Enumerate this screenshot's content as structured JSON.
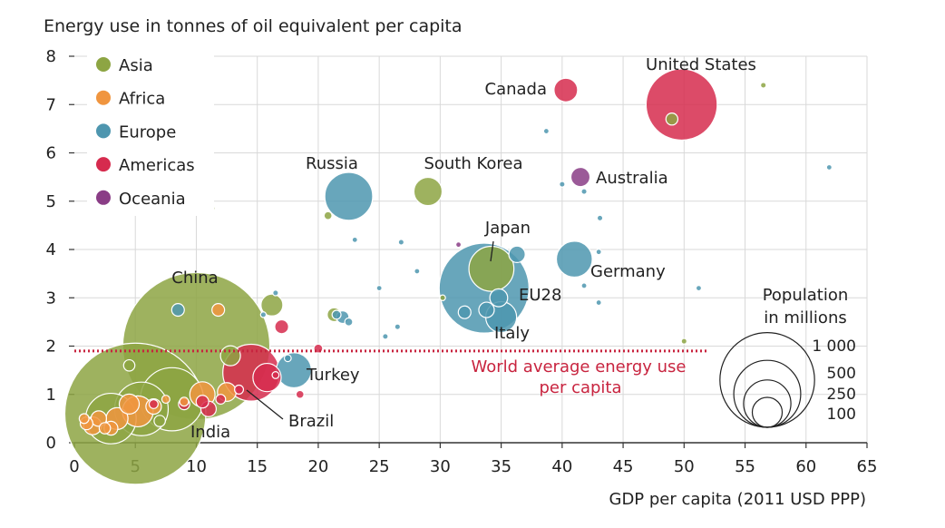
{
  "chart_data": {
    "type": "scatter",
    "title": "Energy use in tonnes of oil equivalent per capita",
    "xlabel": "GDP per capita (2011 USD PPP)",
    "ylabel": "Energy use in tonnes of oil equivalent per capita",
    "xlim": [
      0,
      65
    ],
    "ylim": [
      0,
      8
    ],
    "xticks": [
      0,
      5,
      10,
      15,
      20,
      25,
      30,
      35,
      40,
      45,
      50,
      55,
      60,
      65
    ],
    "yticks": [
      0,
      1,
      2,
      3,
      4,
      5,
      6,
      7,
      8
    ],
    "grid": true,
    "legend": {
      "position": "top-left",
      "entries": [
        {
          "name": "Asia",
          "color": "#8da543"
        },
        {
          "name": "Africa",
          "color": "#f0953f"
        },
        {
          "name": "Europe",
          "color": "#4e96af"
        },
        {
          "name": "Americas",
          "color": "#d62b4e"
        },
        {
          "name": "Oceania",
          "color": "#8a3d86"
        }
      ]
    },
    "reference_line": {
      "y": 1.9,
      "label_line1": "World average energy use",
      "label_line2": "per capita",
      "color": "#c8243f"
    },
    "size_legend": {
      "title_line1": "Population",
      "title_line2": "in millions",
      "entries": [
        {
          "label": "1 000",
          "population": 1000
        },
        {
          "label": "500",
          "population": 500
        },
        {
          "label": "250",
          "population": 250
        },
        {
          "label": "100",
          "population": 100
        }
      ]
    },
    "points": [
      {
        "label": "China",
        "region": "Asia",
        "x": 10.0,
        "y": 2.0,
        "population": 1360
      },
      {
        "label": "India",
        "region": "Asia",
        "x": 5.0,
        "y": 0.6,
        "population": 1250
      },
      {
        "label": "EU28",
        "region": "Europe",
        "x": 33.6,
        "y": 3.2,
        "population": 507
      },
      {
        "label": "United States",
        "region": "Americas",
        "x": 49.8,
        "y": 7.0,
        "population": 318
      },
      {
        "label": "Russia",
        "region": "Europe",
        "x": 22.5,
        "y": 5.1,
        "population": 144
      },
      {
        "label": "Japan",
        "region": "Asia",
        "x": 34.2,
        "y": 3.6,
        "population": 127
      },
      {
        "label": "Brazil",
        "region": "Americas",
        "x": 14.5,
        "y": 1.45,
        "population": 202
      },
      {
        "label": "Turkey",
        "region": "Europe",
        "x": 18.0,
        "y": 1.5,
        "population": 77
      },
      {
        "label": "Germany",
        "region": "Europe",
        "x": 41.0,
        "y": 3.8,
        "population": 81
      },
      {
        "label": "Canada",
        "region": "Americas",
        "x": 40.3,
        "y": 7.3,
        "population": 35
      },
      {
        "label": "Australia",
        "region": "Oceania",
        "x": 41.5,
        "y": 5.5,
        "population": 23
      },
      {
        "label": "South Korea",
        "region": "Asia",
        "x": 29.0,
        "y": 5.2,
        "population": 50
      },
      {
        "label": "Italy",
        "region": "Europe",
        "x": 35.0,
        "y": 2.6,
        "population": 60
      },
      {
        "label": "",
        "region": "Asia",
        "x": 8.0,
        "y": 0.9,
        "population": 250
      },
      {
        "label": "",
        "region": "Asia",
        "x": 5.5,
        "y": 0.7,
        "population": 180
      },
      {
        "label": "",
        "region": "Asia",
        "x": 3.0,
        "y": 0.5,
        "population": 160
      },
      {
        "label": "",
        "region": "Asia",
        "x": 16.2,
        "y": 2.85,
        "population": 30
      },
      {
        "label": "",
        "region": "Asia",
        "x": 21.3,
        "y": 2.65,
        "population": 12
      },
      {
        "label": "",
        "region": "Asia",
        "x": 20.8,
        "y": 4.7,
        "population": 4
      },
      {
        "label": "",
        "region": "Asia",
        "x": 11.3,
        "y": 4.85,
        "population": 1
      },
      {
        "label": "",
        "region": "Asia",
        "x": 30.2,
        "y": 3.0,
        "population": 2
      },
      {
        "label": "",
        "region": "Asia",
        "x": 56.5,
        "y": 7.4,
        "population": 2
      },
      {
        "label": "",
        "region": "Asia",
        "x": 49.0,
        "y": 6.7,
        "population": 9
      },
      {
        "label": "",
        "region": "Asia",
        "x": 50.0,
        "y": 2.1,
        "population": 2
      },
      {
        "label": "",
        "region": "Asia",
        "x": 4.5,
        "y": 1.6,
        "population": 8
      },
      {
        "label": "",
        "region": "Asia",
        "x": 12.8,
        "y": 1.8,
        "population": 25
      },
      {
        "label": "",
        "region": "Asia",
        "x": 7.0,
        "y": 0.45,
        "population": 8
      },
      {
        "label": "",
        "region": "Africa",
        "x": 5.2,
        "y": 0.65,
        "population": 60
      },
      {
        "label": "",
        "region": "Africa",
        "x": 3.5,
        "y": 0.5,
        "population": 30
      },
      {
        "label": "",
        "region": "Africa",
        "x": 1.5,
        "y": 0.35,
        "population": 20
      },
      {
        "label": "",
        "region": "Africa",
        "x": 2.0,
        "y": 0.5,
        "population": 15
      },
      {
        "label": "",
        "region": "Africa",
        "x": 1.0,
        "y": 0.4,
        "population": 10
      },
      {
        "label": "",
        "region": "Africa",
        "x": 2.5,
        "y": 0.3,
        "population": 8
      },
      {
        "label": "",
        "region": "Africa",
        "x": 4.5,
        "y": 0.8,
        "population": 25
      },
      {
        "label": "",
        "region": "Africa",
        "x": 6.5,
        "y": 0.75,
        "population": 15
      },
      {
        "label": "",
        "region": "Africa",
        "x": 10.5,
        "y": 1.0,
        "population": 40
      },
      {
        "label": "",
        "region": "Africa",
        "x": 12.5,
        "y": 1.05,
        "population": 22
      },
      {
        "label": "",
        "region": "Africa",
        "x": 11.8,
        "y": 2.75,
        "population": 10
      },
      {
        "label": "",
        "region": "Africa",
        "x": 0.8,
        "y": 0.5,
        "population": 6
      },
      {
        "label": "",
        "region": "Africa",
        "x": 3.0,
        "y": 0.3,
        "population": 12
      },
      {
        "label": "",
        "region": "Africa",
        "x": 9.0,
        "y": 0.85,
        "population": 5
      },
      {
        "label": "",
        "region": "Africa",
        "x": 7.5,
        "y": 0.9,
        "population": 4
      },
      {
        "label": "",
        "region": "Europe",
        "x": 8.5,
        "y": 2.75,
        "population": 10
      },
      {
        "label": "",
        "region": "Europe",
        "x": 16.5,
        "y": 3.1,
        "population": 2
      },
      {
        "label": "",
        "region": "Europe",
        "x": 15.5,
        "y": 2.65,
        "population": 2
      },
      {
        "label": "",
        "region": "Europe",
        "x": 22.0,
        "y": 2.6,
        "population": 10
      },
      {
        "label": "",
        "region": "Europe",
        "x": 21.5,
        "y": 2.65,
        "population": 5
      },
      {
        "label": "",
        "region": "Europe",
        "x": 22.5,
        "y": 2.5,
        "population": 4
      },
      {
        "label": "",
        "region": "Europe",
        "x": 25.5,
        "y": 2.2,
        "population": 2
      },
      {
        "label": "",
        "region": "Europe",
        "x": 26.5,
        "y": 2.4,
        "population": 2
      },
      {
        "label": "",
        "region": "Europe",
        "x": 25.0,
        "y": 3.2,
        "population": 1
      },
      {
        "label": "",
        "region": "Europe",
        "x": 26.8,
        "y": 4.15,
        "population": 2
      },
      {
        "label": "",
        "region": "Europe",
        "x": 32.0,
        "y": 2.7,
        "population": 10
      },
      {
        "label": "",
        "region": "Europe",
        "x": 36.3,
        "y": 3.9,
        "population": 17
      },
      {
        "label": "",
        "region": "Europe",
        "x": 38.7,
        "y": 6.45,
        "population": 1
      },
      {
        "label": "",
        "region": "Europe",
        "x": 40.0,
        "y": 5.35,
        "population": 2
      },
      {
        "label": "",
        "region": "Europe",
        "x": 41.8,
        "y": 5.2,
        "population": 2
      },
      {
        "label": "",
        "region": "Europe",
        "x": 43.1,
        "y": 4.65,
        "population": 2
      },
      {
        "label": "",
        "region": "Europe",
        "x": 43.0,
        "y": 3.95,
        "population": 1
      },
      {
        "label": "",
        "region": "Europe",
        "x": 41.8,
        "y": 3.25,
        "population": 1
      },
      {
        "label": "",
        "region": "Europe",
        "x": 43.0,
        "y": 2.9,
        "population": 1
      },
      {
        "label": "",
        "region": "Europe",
        "x": 51.2,
        "y": 3.2,
        "population": 1
      },
      {
        "label": "",
        "region": "Europe",
        "x": 61.9,
        "y": 5.7,
        "population": 1
      },
      {
        "label": "",
        "region": "Europe",
        "x": 34.8,
        "y": 3.0,
        "population": 20
      },
      {
        "label": "",
        "region": "Europe",
        "x": 33.8,
        "y": 2.75,
        "population": 15
      },
      {
        "label": "",
        "region": "Europe",
        "x": 28.1,
        "y": 3.55,
        "population": 1
      },
      {
        "label": "",
        "region": "Europe",
        "x": 17.5,
        "y": 1.75,
        "population": 3
      },
      {
        "label": "",
        "region": "Europe",
        "x": 23.0,
        "y": 4.2,
        "population": 1
      },
      {
        "label": "",
        "region": "Americas",
        "x": 17.0,
        "y": 2.4,
        "population": 12
      },
      {
        "label": "",
        "region": "Americas",
        "x": 20.0,
        "y": 1.95,
        "population": 5
      },
      {
        "label": "",
        "region": "Americas",
        "x": 18.5,
        "y": 1.0,
        "population": 4
      },
      {
        "label": "",
        "region": "Americas",
        "x": 15.8,
        "y": 1.35,
        "population": 50
      },
      {
        "label": "",
        "region": "Americas",
        "x": 11.0,
        "y": 0.7,
        "population": 15
      },
      {
        "label": "",
        "region": "Americas",
        "x": 10.5,
        "y": 0.85,
        "population": 10
      },
      {
        "label": "",
        "region": "Americas",
        "x": 12.0,
        "y": 0.9,
        "population": 6
      },
      {
        "label": "",
        "region": "Americas",
        "x": 9.0,
        "y": 0.8,
        "population": 8
      },
      {
        "label": "",
        "region": "Americas",
        "x": 13.5,
        "y": 1.1,
        "population": 5
      },
      {
        "label": "",
        "region": "Americas",
        "x": 16.5,
        "y": 1.4,
        "population": 3
      },
      {
        "label": "",
        "region": "Americas",
        "x": 6.5,
        "y": 0.8,
        "population": 5
      },
      {
        "label": "",
        "region": "Oceania",
        "x": 31.5,
        "y": 4.1,
        "population": 1
      }
    ]
  }
}
